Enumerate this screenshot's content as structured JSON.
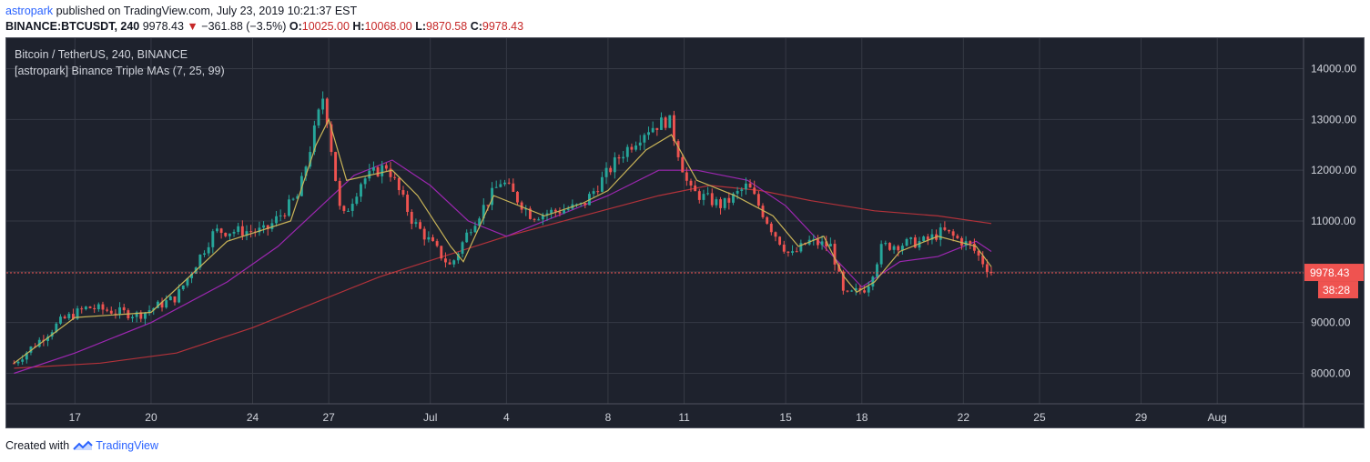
{
  "header": {
    "author": "astropark",
    "published_text": "published on TradingView.com, July 23, 2019 10:21:37 EST",
    "symbol_label": "BINANCE:BTCUSDT, 240",
    "last": "9978.43",
    "change": "−361.88 (−3.5%)",
    "open_label": "O:",
    "open_value": "10025.00",
    "high_label": "H:",
    "high_value": "10068.00",
    "low_label": "L:",
    "low_value": "9870.58",
    "close_label": "C:",
    "close_value": "9978.43"
  },
  "legend": {
    "title": "Bitcoin / TetherUS, 240, BINANCE",
    "indicator": "[astropark] Binance Triple MAs (7, 25, 99)"
  },
  "price_tag": {
    "price": "9978.43",
    "countdown": "38:28"
  },
  "footer": {
    "created_with": "Created with",
    "brand": "TradingView"
  },
  "colors": {
    "bg": "#1e222d",
    "grid": "#363a45",
    "up": "#26a69a",
    "down": "#ef5350",
    "ma7": "#c9b458",
    "ma25": "#9c27b0",
    "ma99": "#b2323a",
    "axis_text": "#d1d4dc"
  },
  "chart_data": {
    "type": "candlestick",
    "title": "Bitcoin / TetherUS, 240, BINANCE",
    "ylim": [
      7400,
      14600
    ],
    "y_ticks": [
      "14000.00",
      "13000.00",
      "12000.00",
      "11000.00",
      "10000.00",
      "9000.00",
      "8000.00"
    ],
    "y_tick_values": [
      14000,
      13000,
      12000,
      11000,
      10000,
      9000,
      8000
    ],
    "x_ticks": [
      "17",
      "20",
      "24",
      "27",
      "Jul",
      "4",
      "8",
      "11",
      "15",
      "18",
      "22",
      "25",
      "29",
      "Aug"
    ],
    "x_tick_dates": [
      17,
      20,
      24,
      27,
      31,
      34,
      38,
      41,
      45,
      48,
      52,
      55,
      59,
      62
    ],
    "x_range_days": [
      14.3,
      65.4
    ],
    "last_price": 9978.43,
    "key_points": [
      {
        "day": 14.6,
        "close": 8200
      },
      {
        "day": 16.5,
        "close": 9050
      },
      {
        "day": 17.5,
        "close": 9300
      },
      {
        "day": 19.5,
        "close": 9150
      },
      {
        "day": 21.0,
        "close": 9500
      },
      {
        "day": 22.5,
        "close": 10800
      },
      {
        "day": 24.5,
        "close": 10800
      },
      {
        "day": 25.8,
        "close": 11500
      },
      {
        "day": 26.8,
        "close": 13500
      },
      {
        "day": 27.5,
        "close": 11000
      },
      {
        "day": 28.3,
        "close": 11800
      },
      {
        "day": 29.3,
        "close": 12100
      },
      {
        "day": 30.3,
        "close": 11000
      },
      {
        "day": 31.8,
        "close": 10100
      },
      {
        "day": 32.6,
        "close": 10900
      },
      {
        "day": 33.8,
        "close": 11800
      },
      {
        "day": 35.0,
        "close": 11100
      },
      {
        "day": 37.0,
        "close": 11300
      },
      {
        "day": 38.5,
        "close": 12300
      },
      {
        "day": 39.5,
        "close": 12800
      },
      {
        "day": 40.4,
        "close": 13000
      },
      {
        "day": 41.2,
        "close": 11600
      },
      {
        "day": 42.5,
        "close": 11300
      },
      {
        "day": 43.5,
        "close": 11700
      },
      {
        "day": 44.5,
        "close": 10800
      },
      {
        "day": 45.2,
        "close": 10300
      },
      {
        "day": 45.9,
        "close": 10600
      },
      {
        "day": 46.8,
        "close": 10500
      },
      {
        "day": 47.3,
        "close": 9500
      },
      {
        "day": 48.2,
        "close": 9700
      },
      {
        "day": 48.8,
        "close": 10500
      },
      {
        "day": 50.5,
        "close": 10600
      },
      {
        "day": 51.2,
        "close": 10800
      },
      {
        "day": 52.3,
        "close": 10500
      },
      {
        "day": 53.1,
        "close": 9978
      }
    ],
    "series_ma": [
      {
        "name": "MA 7",
        "points": [
          [
            14.6,
            8200
          ],
          [
            17,
            9100
          ],
          [
            20,
            9200
          ],
          [
            23,
            10600
          ],
          [
            25.5,
            11000
          ],
          [
            26.5,
            12500
          ],
          [
            27,
            13000
          ],
          [
            27.7,
            11800
          ],
          [
            29.5,
            12000
          ],
          [
            30.5,
            11500
          ],
          [
            31.8,
            10500
          ],
          [
            32.3,
            10200
          ],
          [
            33.5,
            11500
          ],
          [
            35.5,
            11100
          ],
          [
            37,
            11350
          ],
          [
            38,
            11600
          ],
          [
            39.5,
            12400
          ],
          [
            40.5,
            12700
          ],
          [
            41.5,
            11800
          ],
          [
            43,
            11500
          ],
          [
            44.5,
            11100
          ],
          [
            45.5,
            10500
          ],
          [
            46.5,
            10700
          ],
          [
            47.3,
            9900
          ],
          [
            47.8,
            9600
          ],
          [
            48.5,
            9800
          ],
          [
            49.5,
            10400
          ],
          [
            51,
            10700
          ],
          [
            52.5,
            10500
          ],
          [
            53.1,
            10100
          ]
        ]
      },
      {
        "name": "MA 25",
        "points": [
          [
            14.6,
            8000
          ],
          [
            17,
            8400
          ],
          [
            20,
            9000
          ],
          [
            23,
            9800
          ],
          [
            25,
            10500
          ],
          [
            26.5,
            11200
          ],
          [
            28,
            11900
          ],
          [
            29.5,
            12200
          ],
          [
            31,
            11700
          ],
          [
            32.5,
            11000
          ],
          [
            34,
            10700
          ],
          [
            36,
            11100
          ],
          [
            38,
            11500
          ],
          [
            40,
            12000
          ],
          [
            41.5,
            12000
          ],
          [
            43.5,
            11800
          ],
          [
            45,
            11300
          ],
          [
            46.5,
            10500
          ],
          [
            48,
            9700
          ],
          [
            49.5,
            10200
          ],
          [
            51,
            10300
          ],
          [
            52.5,
            10600
          ],
          [
            53.1,
            10400
          ]
        ]
      },
      {
        "name": "MA 99",
        "points": [
          [
            14.6,
            8100
          ],
          [
            18,
            8200
          ],
          [
            21,
            8400
          ],
          [
            24,
            8900
          ],
          [
            26.5,
            9400
          ],
          [
            29,
            9900
          ],
          [
            31.5,
            10300
          ],
          [
            34,
            10700
          ],
          [
            37,
            11100
          ],
          [
            40,
            11500
          ],
          [
            42,
            11700
          ],
          [
            44,
            11600
          ],
          [
            46,
            11400
          ],
          [
            48.5,
            11200
          ],
          [
            51,
            11100
          ],
          [
            53.1,
            10950
          ]
        ]
      }
    ]
  }
}
